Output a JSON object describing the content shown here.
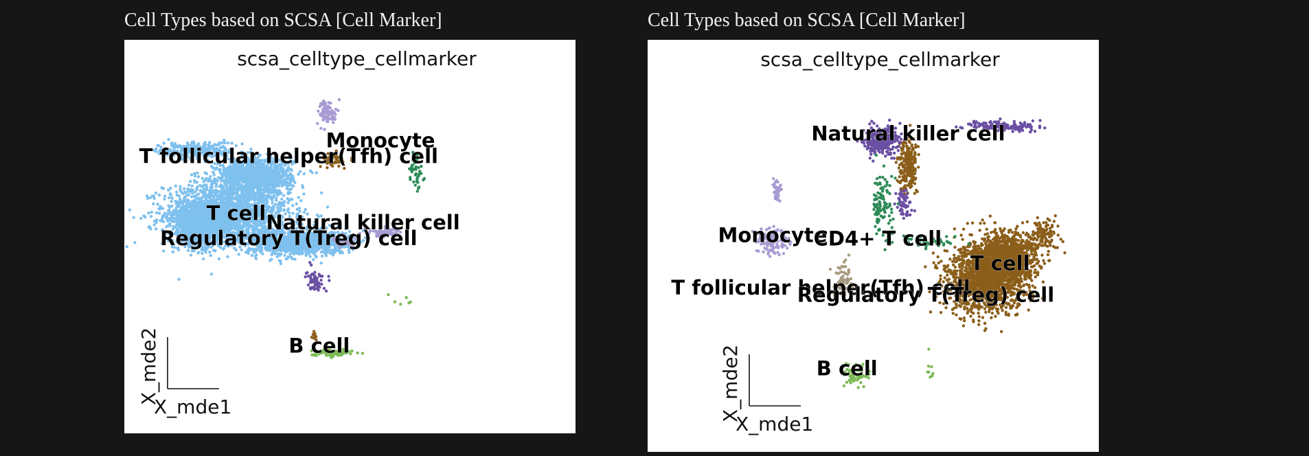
{
  "panels": [
    {
      "heading": "Cell Types based on SCSA [Cell Marker]"
    },
    {
      "heading": "Cell Types based on SCSA [Cell Marker]"
    }
  ],
  "chart_data": [
    {
      "type": "scatter",
      "title": "scsa_celltype_cellmarker",
      "xlabel": "X_mde1",
      "ylabel": "X_mde2",
      "grid": false,
      "legend": "on data",
      "categories": [
        {
          "name": "T follicular helper(Tfh) cell",
          "color": "#8b5e1a"
        },
        {
          "name": "Monocyte",
          "color": "#a89bd3"
        },
        {
          "name": "T cell",
          "color": "#7ec0ee"
        },
        {
          "name": "Natural killer cell",
          "color": "#6a4fa3"
        },
        {
          "name": "Regulatory T(Treg) cell",
          "color": "#7ec0ee"
        },
        {
          "name": "B cell",
          "color": "#7cbb55"
        },
        {
          "name": "CD4+ T cell",
          "color": "#2e8b57"
        }
      ],
      "labels": [
        {
          "text": "Monocyte",
          "x": 5.7,
          "y": 7.9
        },
        {
          "text": "T follicular helper(Tfh) cell",
          "x": 3.6,
          "y": 7.4
        },
        {
          "text": "T cell",
          "x": 2.4,
          "y": 5.6
        },
        {
          "text": "Natural killer cell",
          "x": 5.3,
          "y": 5.3
        },
        {
          "text": "Regulatory T(Treg) cell",
          "x": 3.6,
          "y": 4.8
        },
        {
          "text": "B cell",
          "x": 4.3,
          "y": 1.4
        }
      ],
      "clusters": [
        {
          "category": "T cell",
          "color": "#7ec0ee",
          "count": 1800,
          "cx": 2.2,
          "cy": 5.8,
          "sx": 1.3,
          "sy": 0.9
        },
        {
          "category": "T cell",
          "color": "#7ec0ee",
          "count": 1500,
          "cx": 1.6,
          "cy": 5.5,
          "sx": 0.45,
          "sy": 0.6
        },
        {
          "category": "T cell",
          "color": "#7ec0ee",
          "count": 1200,
          "cx": 2.8,
          "cy": 7.0,
          "sx": 0.8,
          "sy": 0.5
        },
        {
          "category": "T cell",
          "color": "#7ec0ee",
          "count": 1200,
          "cx": 3.8,
          "cy": 4.9,
          "sx": 1.0,
          "sy": 0.35
        },
        {
          "category": "T cell",
          "color": "#7ec0ee",
          "count": 250,
          "cx": 1.5,
          "cy": 7.8,
          "sx": 0.8,
          "sy": 0.25
        },
        {
          "category": "Monocyte",
          "color": "#a89bd3",
          "count": 90,
          "cx": 4.5,
          "cy": 9.0,
          "sx": 0.2,
          "sy": 0.35
        },
        {
          "category": "Monocyte",
          "color": "#a89bd3",
          "count": 90,
          "cx": 5.8,
          "cy": 5.2,
          "sx": 0.35,
          "sy": 0.12
        },
        {
          "category": "Monocyte",
          "color": "#a89bd3",
          "count": 40,
          "cx": 4.9,
          "cy": 4.9,
          "sx": 0.25,
          "sy": 0.12
        },
        {
          "category": "T follicular helper(Tfh) cell",
          "color": "#8b5e1a",
          "count": 60,
          "cx": 4.6,
          "cy": 7.5,
          "sx": 0.25,
          "sy": 0.2
        },
        {
          "category": "T follicular helper(Tfh) cell",
          "color": "#8b5e1a",
          "count": 10,
          "cx": 4.2,
          "cy": 1.9,
          "sx": 0.05,
          "sy": 0.15
        },
        {
          "category": "CD4+ T cell",
          "color": "#2e8b57",
          "count": 50,
          "cx": 6.5,
          "cy": 7.2,
          "sx": 0.15,
          "sy": 0.6
        },
        {
          "category": "Natural killer cell",
          "color": "#6a4fa3",
          "count": 60,
          "cx": 4.2,
          "cy": 3.7,
          "sx": 0.18,
          "sy": 0.3
        },
        {
          "category": "B cell",
          "color": "#7cbb55",
          "count": 70,
          "cx": 4.6,
          "cy": 1.4,
          "sx": 0.4,
          "sy": 0.1
        },
        {
          "category": "B cell",
          "color": "#7cbb55",
          "count": 6,
          "cx": 6.2,
          "cy": 3.0,
          "sx": 0.4,
          "sy": 0.4
        }
      ]
    },
    {
      "type": "scatter",
      "title": "scsa_celltype_cellmarker",
      "xlabel": "X_mde1",
      "ylabel": "X_mde2",
      "grid": false,
      "legend": "on data",
      "categories": [
        {
          "name": "Natural killer cell",
          "color": "#6a4fa3"
        },
        {
          "name": "Monocyte",
          "color": "#a89bd3"
        },
        {
          "name": "CD4+ T cell",
          "color": "#2e8b57"
        },
        {
          "name": "T cell",
          "color": "#8b5e1a"
        },
        {
          "name": "T follicular helper(Tfh) cell",
          "color": "#a89a80"
        },
        {
          "name": "Regulatory T(Treg) cell",
          "color": "#8b5e1a"
        },
        {
          "name": "B cell",
          "color": "#7cbb55"
        }
      ],
      "labels": [
        {
          "text": "Natural killer cell",
          "x": 5.8,
          "y": 8.3
        },
        {
          "text": "Monocyte",
          "x": 2.7,
          "y": 5.4
        },
        {
          "text": "CD4+ T cell",
          "x": 5.1,
          "y": 5.3
        },
        {
          "text": "T cell",
          "x": 7.9,
          "y": 4.6
        },
        {
          "text": "T follicular helper(Tfh) cell",
          "x": 3.8,
          "y": 3.9
        },
        {
          "text": "Regulatory T(Treg) cell",
          "x": 6.2,
          "y": 3.7
        },
        {
          "text": "B cell",
          "x": 4.4,
          "y": 1.6
        }
      ],
      "clusters": [
        {
          "category": "T cell",
          "color": "#8b5e1a",
          "count": 1800,
          "cx": 7.6,
          "cy": 4.4,
          "sx": 0.8,
          "sy": 0.9
        },
        {
          "category": "T cell",
          "color": "#8b5e1a",
          "count": 900,
          "cx": 8.1,
          "cy": 5.0,
          "sx": 0.55,
          "sy": 0.6
        },
        {
          "category": "T cell",
          "color": "#8b5e1a",
          "count": 120,
          "cx": 8.9,
          "cy": 5.6,
          "sx": 0.3,
          "sy": 0.4
        },
        {
          "category": "T cell",
          "color": "#8b5e1a",
          "count": 250,
          "cx": 5.8,
          "cy": 7.6,
          "sx": 0.18,
          "sy": 0.7
        },
        {
          "category": "Natural killer cell",
          "color": "#6a4fa3",
          "count": 350,
          "cx": 5.2,
          "cy": 8.3,
          "sx": 0.35,
          "sy": 0.35
        },
        {
          "category": "Natural killer cell",
          "color": "#6a4fa3",
          "count": 150,
          "cx": 7.9,
          "cy": 8.7,
          "sx": 0.8,
          "sy": 0.15
        },
        {
          "category": "Natural killer cell",
          "color": "#6a4fa3",
          "count": 60,
          "cx": 5.7,
          "cy": 6.5,
          "sx": 0.15,
          "sy": 0.4
        },
        {
          "category": "CD4+ T cell",
          "color": "#2e8b57",
          "count": 110,
          "cx": 5.2,
          "cy": 6.5,
          "sx": 0.2,
          "sy": 0.9
        },
        {
          "category": "CD4+ T cell",
          "color": "#2e8b57",
          "count": 50,
          "cx": 6.3,
          "cy": 5.4,
          "sx": 0.5,
          "sy": 0.15
        },
        {
          "category": "Monocyte",
          "color": "#a89bd3",
          "count": 120,
          "cx": 2.7,
          "cy": 5.4,
          "sx": 0.35,
          "sy": 0.35
        },
        {
          "category": "Monocyte",
          "color": "#a89bd3",
          "count": 40,
          "cx": 2.8,
          "cy": 6.9,
          "sx": 0.1,
          "sy": 0.3
        },
        {
          "category": "T follicular helper(Tfh) cell",
          "color": "#a89a80",
          "count": 60,
          "cx": 4.3,
          "cy": 4.4,
          "sx": 0.2,
          "sy": 0.5
        },
        {
          "category": "B cell",
          "color": "#7cbb55",
          "count": 60,
          "cx": 4.6,
          "cy": 1.6,
          "sx": 0.25,
          "sy": 0.25
        },
        {
          "category": "B cell",
          "color": "#7cbb55",
          "count": 8,
          "cx": 6.3,
          "cy": 1.8,
          "sx": 0.1,
          "sy": 0.5
        }
      ]
    }
  ]
}
